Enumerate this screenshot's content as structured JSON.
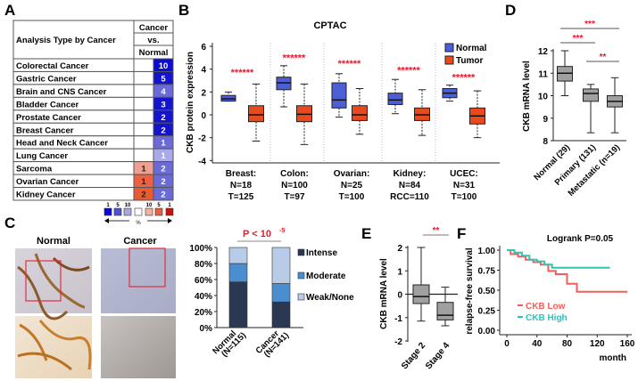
{
  "panel_labels": {
    "a": "A",
    "b": "B",
    "c": "C",
    "d": "D",
    "e": "E",
    "f": "F"
  },
  "chart_data": [
    {
      "id": "A",
      "type": "table",
      "header": {
        "row_label": "Analysis Type by Cancer",
        "col_lines": [
          "Cancer",
          "vs.",
          "Normal"
        ]
      },
      "rows": [
        {
          "label": "Colorectal Cancer",
          "up": null,
          "down": "10",
          "down_color": "#0a0ad2"
        },
        {
          "label": "Gastric Cancer",
          "up": null,
          "down": "5",
          "down_color": "#1414cc"
        },
        {
          "label": "Brain and CNS Cancer",
          "up": null,
          "down": "4",
          "down_color": "#6a6ad8"
        },
        {
          "label": "Bladder Cancer",
          "up": null,
          "down": "3",
          "down_color": "#1414cc"
        },
        {
          "label": "Prostate Cancer",
          "up": null,
          "down": "2",
          "down_color": "#1414cc"
        },
        {
          "label": "Breast Cancer",
          "up": null,
          "down": "2",
          "down_color": "#1414cc"
        },
        {
          "label": "Head and Neck Cancer",
          "up": null,
          "down": "1",
          "down_color": "#6a6ad8"
        },
        {
          "label": "Lung Cancer",
          "up": null,
          "down": "1",
          "down_color": "#aaaaea"
        },
        {
          "label": "Sarcoma",
          "up": "1",
          "up_color": "#f0a090",
          "down": "2",
          "down_color": "#6a6ad8"
        },
        {
          "label": "Ovarian Cancer",
          "up": "1",
          "up_color": "#ee6040",
          "down": "2",
          "down_color": "#6a6ad8"
        },
        {
          "label": "Kidney Cancer",
          "up": "2",
          "up_color": "#e85a30",
          "down": "2",
          "down_color": "#6a6ad8"
        }
      ],
      "legend": {
        "ranks": [
          "1",
          "5",
          "10",
          "",
          "10",
          "5",
          "1"
        ],
        "colors": [
          "#0a0ad2",
          "#5050d0",
          "#a8a8e0",
          "#ffffff",
          "#f4b0a0",
          "#e86040",
          "#cc1010"
        ],
        "unit": "%"
      }
    },
    {
      "id": "B",
      "type": "box",
      "title": "CPTAC",
      "ylabel": "CKB protein expression",
      "ylim": [
        -4,
        6
      ],
      "yticks": [
        "6",
        "4",
        "2",
        "0",
        "-2",
        "-4"
      ],
      "ytick_values": [
        6,
        4,
        2,
        0,
        -2,
        -4
      ],
      "legend": [
        {
          "name": "Normal",
          "color": "#4d5fd6"
        },
        {
          "name": "Tumor",
          "color": "#e84a1e"
        }
      ],
      "significance": "******",
      "significance_color": "#e8182a",
      "groups": [
        {
          "label": [
            "Breast:",
            "N=18",
            "T=125"
          ],
          "star_y": 3.8,
          "normal": {
            "min": 1.2,
            "q1": 1.2,
            "median": 1.4,
            "q3": 1.7,
            "max": 2.0
          },
          "tumor": {
            "min": -2.3,
            "q1": -0.6,
            "median": 0.0,
            "q3": 0.8,
            "max": 2.7
          }
        },
        {
          "label": [
            "Colon:",
            "N=100",
            "T=97"
          ],
          "star_y": 5.1,
          "normal": {
            "min": 0.7,
            "q1": 2.2,
            "median": 2.8,
            "q3": 3.3,
            "max": 4.3
          },
          "tumor": {
            "min": -2.6,
            "q1": -0.6,
            "median": 0.05,
            "q3": 0.8,
            "max": 2.7
          }
        },
        {
          "label": [
            "Ovarian:",
            "N=25",
            "T=100"
          ],
          "star_y": 4.6,
          "normal": {
            "min": -0.2,
            "q1": 0.6,
            "median": 1.3,
            "q3": 2.8,
            "max": 3.6
          },
          "tumor": {
            "min": -1.7,
            "q1": -0.5,
            "median": 0.0,
            "q3": 0.8,
            "max": 2.3
          }
        },
        {
          "label": [
            "Kidney:",
            "N=84",
            "RCC=110"
          ],
          "star_y": 4.0,
          "normal": {
            "min": 0.1,
            "q1": 0.9,
            "median": 1.3,
            "q3": 1.9,
            "max": 3.1
          },
          "tumor": {
            "min": -1.8,
            "q1": -0.5,
            "median": 0.0,
            "q3": 0.6,
            "max": 2.2
          }
        },
        {
          "label": [
            "UCEC:",
            "N=31",
            "T=100"
          ],
          "star_y": 3.4,
          "normal": {
            "min": 1.2,
            "q1": 1.5,
            "median": 1.9,
            "q3": 2.3,
            "max": 2.6
          },
          "tumor": {
            "min": -2.0,
            "q1": -0.8,
            "median": -0.1,
            "q3": 0.6,
            "max": 2.1
          }
        }
      ]
    },
    {
      "id": "C",
      "type": "bar",
      "stacked": true,
      "image_titles": [
        "Normal",
        "Cancer"
      ],
      "title": "P < 10",
      "title_superscript": "-5",
      "title_color": "#e8182a",
      "categories": [
        "Normal (N=115)",
        "Cancer (N=141)"
      ],
      "category_lines": [
        [
          "Normal",
          "(N=115)"
        ],
        [
          "Cancer",
          "(N=141)"
        ]
      ],
      "ylim": [
        0,
        100
      ],
      "yticks": [
        "100%",
        "80%",
        "60%",
        "40%",
        "20%",
        "0%"
      ],
      "ytick_values": [
        100,
        80,
        60,
        40,
        20,
        0
      ],
      "series": [
        {
          "name": "Intense",
          "color": "#2a3852",
          "values": [
            57,
            32
          ]
        },
        {
          "name": "Moderate",
          "color": "#4a8ed0",
          "values": [
            23,
            23
          ]
        },
        {
          "name": "Weak/None",
          "color": "#b8cce8",
          "values": [
            20,
            45
          ]
        }
      ]
    },
    {
      "id": "D",
      "type": "box",
      "ylabel": "CKB mRNA level",
      "ylim": [
        8,
        12
      ],
      "yticks": [
        "12",
        "11",
        "10",
        "9",
        "8"
      ],
      "ytick_values": [
        12,
        11,
        10,
        9,
        8
      ],
      "box_color": "#a0a0a0",
      "categories": [
        "Normal (29)",
        "Primary (131)",
        "Metastatic (n=19)"
      ],
      "boxes": [
        {
          "min": 10.0,
          "q1": 10.65,
          "median": 11.0,
          "q3": 11.3,
          "max": 12.0
        },
        {
          "min": 8.35,
          "q1": 9.75,
          "median": 10.1,
          "q3": 10.3,
          "max": 10.5
        },
        {
          "min": 8.35,
          "q1": 9.5,
          "median": 9.75,
          "q3": 10.0,
          "max": 10.8
        }
      ],
      "comparisons": [
        {
          "from": 0,
          "to": 2,
          "label": "***"
        },
        {
          "from": 0,
          "to": 1,
          "label": "***"
        },
        {
          "from": 1,
          "to": 2,
          "label": "**"
        }
      ]
    },
    {
      "id": "E",
      "type": "box",
      "ylabel": "CKB mRNA level",
      "ylim": [
        -2,
        2
      ],
      "yticks": [
        "2",
        "1",
        "0",
        "-1",
        "-2"
      ],
      "ytick_values": [
        2,
        1,
        0,
        -1,
        -2
      ],
      "box_color": "#a0a0a0",
      "categories": [
        "Stage 2",
        "Stage 4"
      ],
      "boxes": [
        {
          "min": -1.15,
          "q1": -0.4,
          "median": -0.1,
          "q3": 0.4,
          "max": 2.0
        },
        {
          "min": -1.35,
          "q1": -1.1,
          "median": -0.9,
          "q3": -0.35,
          "max": 0.3
        }
      ],
      "comparisons": [
        {
          "from": 0,
          "to": 1,
          "label": "**"
        }
      ]
    },
    {
      "id": "F",
      "type": "line",
      "step": true,
      "annotation": "Logrank P=0.05",
      "xlabel": "month",
      "ylabel": "relapse-free survival",
      "xlim": [
        0,
        160
      ],
      "ylim": [
        0,
        1
      ],
      "xticks": [
        "0",
        "40",
        "80",
        "120",
        "160"
      ],
      "xtick_values": [
        0,
        40,
        80,
        120,
        160
      ],
      "yticks": [
        "1.00",
        "0.75",
        "0.50",
        "0.25",
        "0.00"
      ],
      "ytick_values": [
        1,
        0.75,
        0.5,
        0.25,
        0
      ],
      "series": [
        {
          "name": "CKB Low",
          "color": "#f0605a",
          "x": [
            0,
            5,
            15,
            25,
            35,
            45,
            55,
            65,
            80,
            93,
            160
          ],
          "y": [
            1.0,
            0.95,
            0.92,
            0.88,
            0.85,
            0.82,
            0.74,
            0.7,
            0.58,
            0.48,
            0.48
          ]
        },
        {
          "name": "CKB High",
          "color": "#2ec4b6",
          "x": [
            0,
            10,
            20,
            30,
            40,
            50,
            60,
            137
          ],
          "y": [
            1.0,
            0.97,
            0.93,
            0.88,
            0.86,
            0.82,
            0.78,
            0.78
          ]
        }
      ]
    }
  ]
}
